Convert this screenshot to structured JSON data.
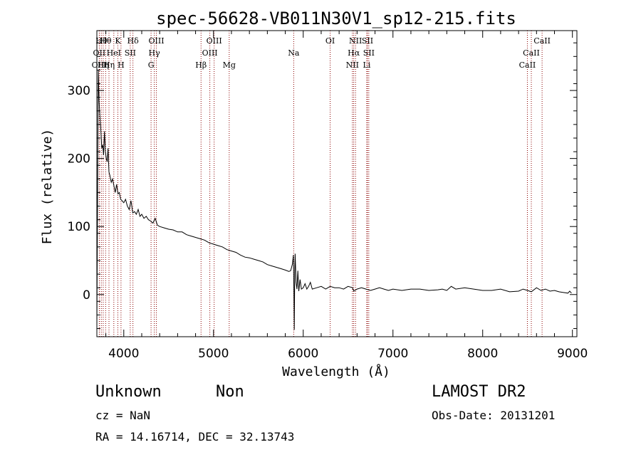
{
  "chart_data": {
    "type": "line",
    "title": "spec-56628-VB011N30V1_sp12-215.fits",
    "xlabel": "Wavelength (Å)",
    "ylabel": "Flux (relative)",
    "xlim": [
      3700,
      9050
    ],
    "ylim": [
      -62,
      388
    ],
    "xticks": [
      4000,
      5000,
      6000,
      7000,
      8000,
      9000
    ],
    "yticks": [
      0,
      100,
      200,
      300
    ],
    "grid": false,
    "line_color": "#000000",
    "marker_color": "#8b0000",
    "series": [
      {
        "x": [
          3700,
          3708,
          3716,
          3725,
          3735,
          3745,
          3755,
          3765,
          3775,
          3785,
          3795,
          3805,
          3815,
          3825,
          3835,
          3845,
          3860,
          3875,
          3890,
          3905,
          3920,
          3935,
          3950,
          3965,
          3980,
          4000,
          4020,
          4040,
          4060,
          4080,
          4100,
          4120,
          4140,
          4160,
          4180,
          4200,
          4225,
          4250,
          4275,
          4300,
          4325,
          4350,
          4375,
          4400,
          4450,
          4500,
          4550,
          4600,
          4650,
          4700,
          4750,
          4800,
          4850,
          4900,
          4950,
          5000,
          5050,
          5100,
          5150,
          5200,
          5250,
          5300,
          5350,
          5400,
          5450,
          5500,
          5550,
          5600,
          5650,
          5700,
          5750,
          5800,
          5840,
          5860,
          5870,
          5880,
          5890,
          5895,
          5900,
          5905,
          5910,
          5920,
          5930,
          5940,
          5950,
          5965,
          5980,
          6000,
          6020,
          6040,
          6060,
          6080,
          6100,
          6150,
          6200,
          6250,
          6300,
          6350,
          6400,
          6450,
          6500,
          6550,
          6563,
          6600,
          6650,
          6700,
          6750,
          6800,
          6850,
          6900,
          6950,
          7000,
          7100,
          7200,
          7300,
          7400,
          7500,
          7550,
          7600,
          7650,
          7700,
          7800,
          7900,
          8000,
          8100,
          8200,
          8300,
          8400,
          8450,
          8500,
          8542,
          8600,
          8650,
          8700,
          8750,
          8800,
          8850,
          8900,
          8950,
          8970,
          8990
        ],
        "values": [
          -50,
          150,
          330,
          285,
          260,
          240,
          215,
          220,
          205,
          240,
          210,
          200,
          195,
          215,
          180,
          175,
          165,
          170,
          160,
          150,
          162,
          148,
          150,
          140,
          138,
          135,
          140,
          130,
          125,
          138,
          120,
          122,
          118,
          125,
          115,
          118,
          112,
          115,
          110,
          108,
          105,
          112,
          102,
          100,
          98,
          96,
          95,
          92,
          92,
          88,
          86,
          84,
          82,
          80,
          76,
          74,
          72,
          70,
          66,
          64,
          62,
          58,
          55,
          54,
          52,
          50,
          48,
          44,
          42,
          40,
          38,
          36,
          34,
          35,
          40,
          45,
          58,
          20,
          -52,
          30,
          60,
          18,
          8,
          35,
          5,
          22,
          8,
          10,
          16,
          8,
          12,
          18,
          8,
          10,
          12,
          8,
          12,
          10,
          10,
          8,
          12,
          10,
          5,
          8,
          10,
          8,
          6,
          8,
          10,
          8,
          6,
          8,
          6,
          8,
          8,
          6,
          7,
          8,
          6,
          12,
          8,
          10,
          8,
          6,
          6,
          8,
          4,
          5,
          8,
          6,
          4,
          10,
          6,
          8,
          5,
          6,
          4,
          3,
          2,
          5,
          2
        ]
      }
    ],
    "line_markers": [
      {
        "x": 3727,
        "label": "OII",
        "row": 1
      },
      {
        "x": 3729,
        "label": "OIII",
        "row": 2
      },
      {
        "x": 3750,
        "label": "Hθ",
        "row": 0
      },
      {
        "x": 3771,
        "label": "Hη",
        "row": 2
      },
      {
        "x": 3798,
        "label": "Hθ",
        "row": 0
      },
      {
        "x": 3835,
        "label": "Hη",
        "row": 2
      },
      {
        "x": 3889,
        "label": "HeI",
        "row": 1
      },
      {
        "x": 3934,
        "label": "K",
        "row": 0
      },
      {
        "x": 3969,
        "label": "H",
        "row": 2
      },
      {
        "x": 4072,
        "label": "SII",
        "row": 1
      },
      {
        "x": 4102,
        "label": "Hδ",
        "row": 0
      },
      {
        "x": 4304,
        "label": "G",
        "row": 2
      },
      {
        "x": 4340,
        "label": "Hγ",
        "row": 1
      },
      {
        "x": 4363,
        "label": "OIII",
        "row": 0
      },
      {
        "x": 4861,
        "label": "Hβ",
        "row": 2
      },
      {
        "x": 4959,
        "label": "OIII",
        "row": 1
      },
      {
        "x": 5007,
        "label": "OIII",
        "row": 0
      },
      {
        "x": 5175,
        "label": "Mg",
        "row": 2
      },
      {
        "x": 5894,
        "label": "Na",
        "row": 1
      },
      {
        "x": 6300,
        "label": "OI",
        "row": 0
      },
      {
        "x": 6548,
        "label": "NII",
        "row": 2
      },
      {
        "x": 6563,
        "label": "Hα",
        "row": 1
      },
      {
        "x": 6583,
        "label": "NII",
        "row": 0
      },
      {
        "x": 6708,
        "label": "Li",
        "row": 2
      },
      {
        "x": 6716,
        "label": "SII",
        "row": 0
      },
      {
        "x": 6731,
        "label": "SII",
        "row": 1
      },
      {
        "x": 8498,
        "label": "CaII",
        "row": 2
      },
      {
        "x": 8542,
        "label": "CaII",
        "row": 1
      },
      {
        "x": 8662,
        "label": "CaII",
        "row": 0
      }
    ]
  },
  "info": {
    "class_label": "Unknown",
    "subclass_label": "Non",
    "survey": "LAMOST DR2",
    "redshift": "cz = NaN",
    "obs_date": "Obs-Date: 20131201",
    "coords": "RA =  14.16714, DEC =  32.13743"
  }
}
